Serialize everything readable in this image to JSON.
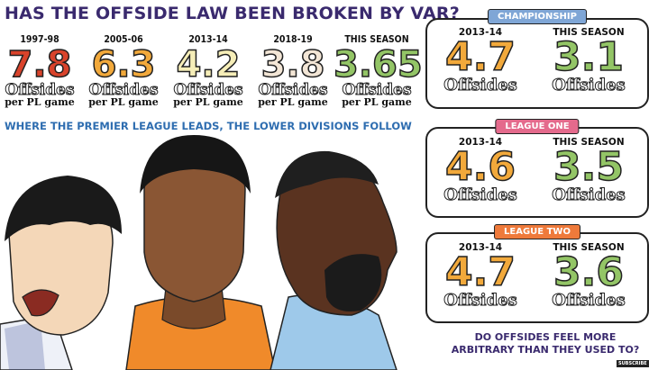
{
  "title": "HAS THE OFFSIDE LAW BEEN BROKEN BY VAR?",
  "premier_league": {
    "offsides_word": "Offsides",
    "per_game": "per PL game",
    "stats": [
      {
        "season": "1997-98",
        "value": "7.8",
        "color": "#d9432b"
      },
      {
        "season": "2005-06",
        "value": "6.3",
        "color": "#f2a93b"
      },
      {
        "season": "2013-14",
        "value": "4.2",
        "color": "#f6eeb8"
      },
      {
        "season": "2018-19",
        "value": "3.8",
        "color": "#f3e6d6"
      },
      {
        "season": "THIS SEASON",
        "value": "3.65",
        "color": "#93c566"
      }
    ]
  },
  "subtitle": "WHERE THE PREMIER LEAGUE LEADS, THE LOWER DIVISIONS FOLLOW",
  "leagues": [
    {
      "name": "CHAMPIONSHIP",
      "tag_color": "#7fa6d6",
      "left_season": "2013-14",
      "left_value": "4.7",
      "right_season": "THIS SEASON",
      "right_value": "3.1",
      "offsides_word": "Offsides"
    },
    {
      "name": "LEAGUE ONE",
      "tag_color": "#e46a8c",
      "left_season": "2013-14",
      "left_value": "4.6",
      "right_season": "THIS SEASON",
      "right_value": "3.5",
      "offsides_word": "Offsides"
    },
    {
      "name": "LEAGUE TWO",
      "tag_color": "#ef7a3b",
      "left_season": "2013-14",
      "left_value": "4.7",
      "right_season": "THIS SEASON",
      "right_value": "3.6",
      "offsides_word": "Offsides"
    }
  ],
  "colors": {
    "old_value": "#f2a93b",
    "new_value": "#93c566"
  },
  "question": "DO OFFSIDES FEEL MORE ARBITRARY THAN THEY USED TO?",
  "subscribe": "SUBSCRIBE"
}
